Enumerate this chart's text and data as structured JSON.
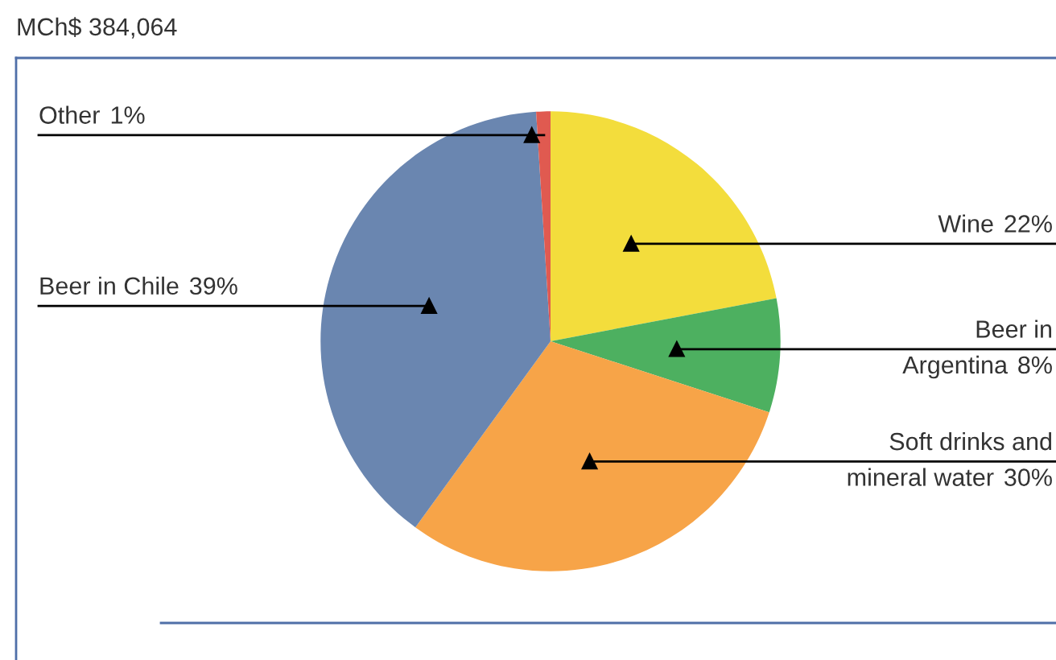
{
  "chart_data": {
    "type": "pie",
    "title": "MCh$ 384,064",
    "categories": [
      "Wine",
      "Beer in\nArgentina",
      "Soft drinks and\nmineral water",
      "Beer in Chile",
      "Other"
    ],
    "values": [
      22,
      8,
      30,
      39,
      1
    ],
    "colors": [
      "#f3dd3c",
      "#4db060",
      "#f7a448",
      "#6a86b0",
      "#e05a50"
    ],
    "value_labels": [
      "22%",
      "8%",
      "30%",
      "39%",
      "1%"
    ]
  }
}
